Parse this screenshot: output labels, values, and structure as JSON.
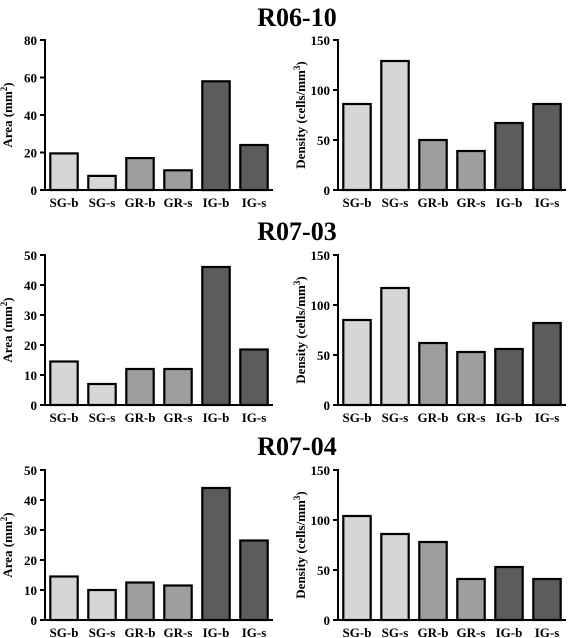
{
  "colors": {
    "SG": "#d6d6d6",
    "GR": "#9e9e9e",
    "IG": "#5c5c5c"
  },
  "group_titles": [
    "R06-10",
    "R07-03",
    "R07-04"
  ],
  "chart_data": [
    {
      "type": "bar",
      "group": "R06-10",
      "title": "R06-10",
      "ylabel": "Area (mm²)",
      "ylabel_parts": [
        "Area (mm",
        "2",
        ")"
      ],
      "categories": [
        "SG-b",
        "SG-s",
        "GR-b",
        "GR-s",
        "IG-b",
        "IG-s"
      ],
      "values": [
        19.5,
        7.5,
        17,
        10.5,
        58,
        24
      ],
      "ylim": [
        0,
        80
      ],
      "yticks": [
        0,
        20,
        40,
        60,
        80
      ]
    },
    {
      "type": "bar",
      "group": "R06-10",
      "title": "",
      "ylabel": "Density (cells/mm³)",
      "ylabel_parts": [
        "Density (cells/mm",
        "3",
        ")"
      ],
      "categories": [
        "SG-b",
        "SG-s",
        "GR-b",
        "GR-s",
        "IG-b",
        "IG-s"
      ],
      "values": [
        86,
        129,
        50,
        39,
        67,
        86
      ],
      "ylim": [
        0,
        150
      ],
      "yticks": [
        0,
        50,
        100,
        150
      ]
    },
    {
      "type": "bar",
      "group": "R07-03",
      "title": "R07-03",
      "ylabel": "Area (mm²)",
      "ylabel_parts": [
        "Area (mm",
        "2",
        ")"
      ],
      "categories": [
        "SG-b",
        "SG-s",
        "GR-b",
        "GR-s",
        "IG-b",
        "IG-s"
      ],
      "values": [
        14.5,
        7,
        12,
        12,
        46,
        18.5
      ],
      "ylim": [
        0,
        50
      ],
      "yticks": [
        0,
        10,
        20,
        30,
        40,
        50
      ]
    },
    {
      "type": "bar",
      "group": "R07-03",
      "title": "",
      "ylabel": "Density (cells/mm³)",
      "ylabel_parts": [
        "Density (cells/mm",
        "3",
        ")"
      ],
      "categories": [
        "SG-b",
        "SG-s",
        "GR-b",
        "GR-s",
        "IG-b",
        "IG-s"
      ],
      "values": [
        85,
        117,
        62,
        53,
        56,
        82
      ],
      "ylim": [
        0,
        150
      ],
      "yticks": [
        0,
        50,
        100,
        150
      ]
    },
    {
      "type": "bar",
      "group": "R07-04",
      "title": "R07-04",
      "ylabel": "Area (mm²)",
      "ylabel_parts": [
        "Area (mm",
        "2",
        ")"
      ],
      "categories": [
        "SG-b",
        "SG-s",
        "GR-b",
        "GR-s",
        "IG-b",
        "IG-s"
      ],
      "values": [
        14.5,
        10,
        12.5,
        11.5,
        44,
        26.5
      ],
      "ylim": [
        0,
        50
      ],
      "yticks": [
        0,
        10,
        20,
        30,
        40,
        50
      ]
    },
    {
      "type": "bar",
      "group": "R07-04",
      "title": "",
      "ylabel": "Density (cells/mm³)",
      "ylabel_parts": [
        "Density (cells/mm",
        "3",
        ")"
      ],
      "categories": [
        "SG-b",
        "SG-s",
        "GR-b",
        "GR-s",
        "IG-b",
        "IG-s"
      ],
      "values": [
        104,
        86,
        78,
        41,
        53,
        41
      ],
      "ylim": [
        0,
        150
      ],
      "yticks": [
        0,
        50,
        100,
        150
      ]
    }
  ]
}
